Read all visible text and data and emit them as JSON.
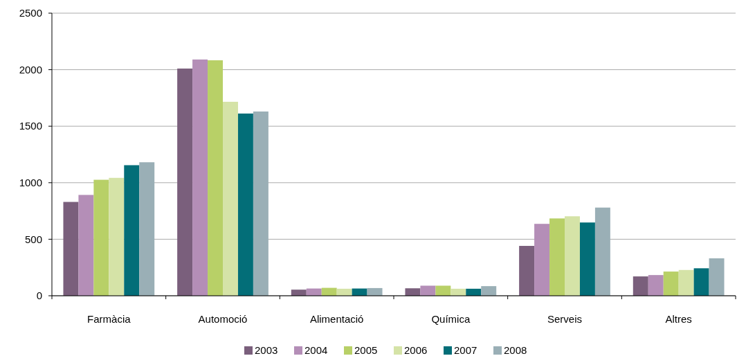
{
  "chart_data": {
    "type": "bar",
    "categories": [
      "Farmàcia",
      "Automoció",
      "Alimentació",
      "Química",
      "Serveis",
      "Altres"
    ],
    "series": [
      {
        "name": "2003",
        "color": "#7a5f7c",
        "values": [
          830,
          2010,
          54,
          66,
          441,
          171
        ]
      },
      {
        "name": "2004",
        "color": "#b48eb7",
        "values": [
          892,
          2090,
          64,
          89,
          636,
          183
        ]
      },
      {
        "name": "2005",
        "color": "#b8d067",
        "values": [
          1026,
          2083,
          70,
          89,
          684,
          214
        ]
      },
      {
        "name": "2006",
        "color": "#d5e3a7",
        "values": [
          1043,
          1716,
          62,
          62,
          703,
          228
        ]
      },
      {
        "name": "2007",
        "color": "#036e78",
        "values": [
          1155,
          1612,
          64,
          62,
          648,
          243
        ]
      },
      {
        "name": "2008",
        "color": "#9aafb6",
        "values": [
          1181,
          1630,
          68,
          85,
          780,
          331
        ]
      }
    ],
    "ylim": [
      0,
      2500
    ],
    "yticks": [
      0,
      500,
      1000,
      1500,
      2000,
      2500
    ],
    "grid": "y",
    "legend": "bottom"
  }
}
